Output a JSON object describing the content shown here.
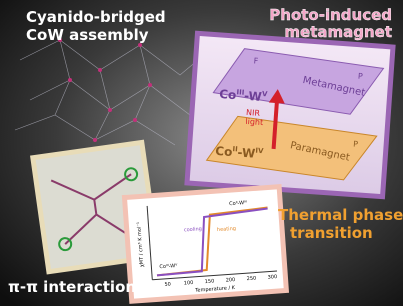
{
  "header": {
    "left_title": [
      "Cyanido-bridged",
      "CoW assembly"
    ],
    "right_title": [
      "Photo-induced",
      "metamagnet"
    ]
  },
  "scheme": {
    "upper_plane": "Metamagnet",
    "upper_corner_left": "F",
    "upper_corner_right": "P",
    "upper_state": [
      "Co",
      "III",
      "-W",
      "V"
    ],
    "lower_plane": "Paramagnet",
    "lower_corner_right": "P",
    "lower_state": [
      "Co",
      "II",
      "-W",
      "IV"
    ],
    "light": [
      "NIR",
      "light"
    ]
  },
  "plot": {
    "ylabel": "χMT / cm³ K mol⁻¹",
    "xlabel": "Temperature / K",
    "xticks": [
      "50",
      "100",
      "150",
      "200",
      "250",
      "300"
    ],
    "cooling": "cooling",
    "heating": "heating",
    "high_state": "Coᴵᴵ-Wᴵⱽ",
    "low_state": "Coᴵᴵᴵ-Wⱽ"
  },
  "footer": {
    "thermal": [
      "Thermal phase",
      "transition"
    ],
    "pi": "π-π interaction"
  }
}
